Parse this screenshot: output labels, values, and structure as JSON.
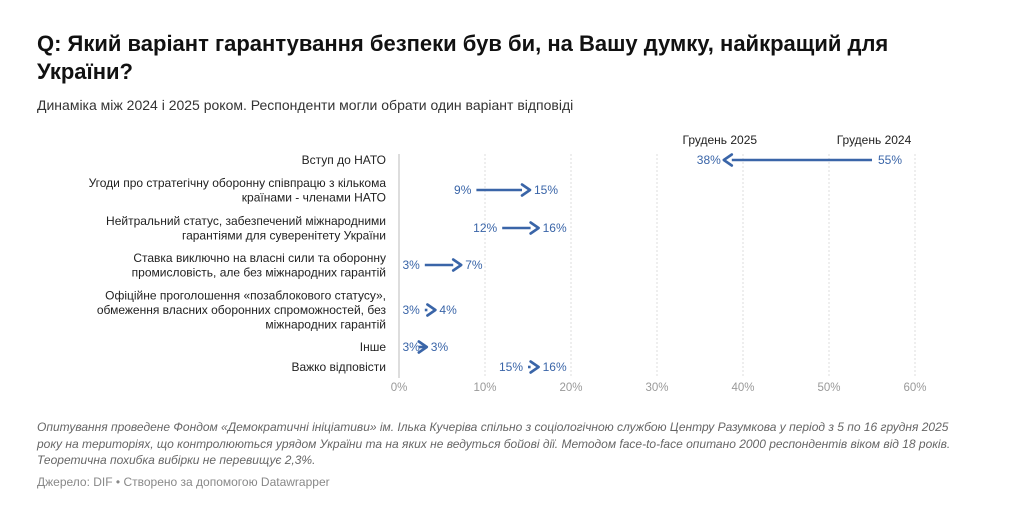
{
  "title": "Q: Який варіант гарантування безпеки був би, на Вашу думку, найкращий для України?",
  "subtitle": "Динаміка між 2024 і 2025 роком. Респонденти могли обрати один варіант відповіді",
  "notes": "Опитування проведене Фондом «Демократичні ініціативи» ім. Ілька Кучеріва спільно з соціологічною службою Центру Разумкова у період з 5 по 16 грудня 2025 року на територіях, що контролюються урядом України та на яких не ведуться бойові дії. Методом face-to-face опитано 2000 респондентів віком від 18 років. Теоретична похибка вибірки не перевищує 2,3%.",
  "source": "Джерело: DIF • Створено за допомогою Datawrapper",
  "colors": {
    "arrow": "#3a65a8",
    "grid": "#dddddd",
    "tick": "#999999"
  },
  "chart_data": {
    "type": "arrow",
    "title": "Q: Який варіант гарантування безпеки був би, на Вашу думку, найкращий для України?",
    "legend": [
      {
        "key": "from",
        "label": "Грудень 2024"
      },
      {
        "key": "to",
        "label": "Грудень 2025"
      }
    ],
    "header_labels": {
      "to": "Грудень 2025",
      "from": "Грудень 2024"
    },
    "xlim": [
      0,
      60
    ],
    "x_ticks": [
      0,
      10,
      20,
      30,
      40,
      50,
      60
    ],
    "x_tick_labels": [
      "0%",
      "10%",
      "20%",
      "30%",
      "40%",
      "50%",
      "60%"
    ],
    "categories": [
      {
        "lines": [
          "Вступ до НАТО"
        ],
        "from": 55,
        "to": 38,
        "from_label": "55%",
        "to_label": "38%"
      },
      {
        "lines": [
          "Угоди про стратегічну оборонну співпрацю з кількома",
          "країнами - членами НАТО"
        ],
        "from": 9,
        "to": 15,
        "from_label": "9%",
        "to_label": "15%"
      },
      {
        "lines": [
          "Нейтральний статус, забезпечений міжнародними",
          "гарантіями для суверенітету України"
        ],
        "from": 12,
        "to": 16,
        "from_label": "12%",
        "to_label": "16%"
      },
      {
        "lines": [
          "Ставка виключно на власні сили та оборонну",
          "промисловість, але без міжнародних гарантій"
        ],
        "from": 3,
        "to": 7,
        "from_label": "3%",
        "to_label": "7%"
      },
      {
        "lines": [
          "Офіційне проголошення «позаблокового статусу»,",
          "обмеження власних оборонних спроможностей, без",
          "міжнародних гарантій"
        ],
        "from": 3,
        "to": 4,
        "from_label": "3%",
        "to_label": "4%"
      },
      {
        "lines": [
          "Інше"
        ],
        "from": 3,
        "to": 3,
        "from_label": "3%",
        "to_label": "3%"
      },
      {
        "lines": [
          "Важко відповісти"
        ],
        "from": 15,
        "to": 16,
        "from_label": "15%",
        "to_label": "16%"
      }
    ]
  }
}
